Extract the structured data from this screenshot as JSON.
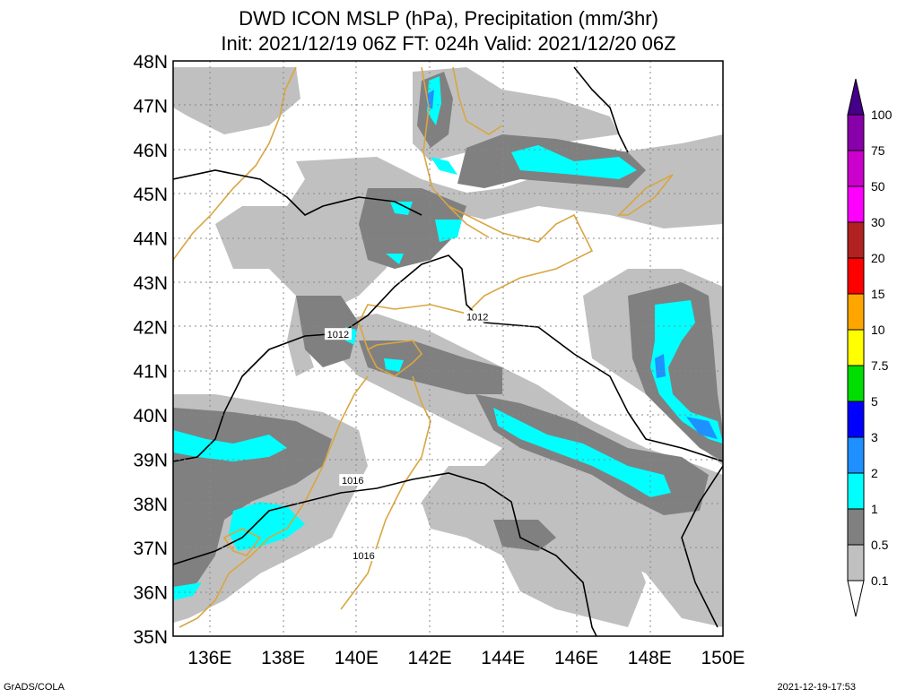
{
  "title_line1": "DWD ICON MSLP (hPa), Precipitation (mm/3hr)",
  "title_line2": "Init: 2021/12/19 06Z  FT: 024h  Valid: 2021/12/20 06Z",
  "footer_left": "GrADS/COLA",
  "footer_right": "2021-12-19-17:53",
  "chart_data": {
    "type": "map",
    "lon_range": [
      135,
      150
    ],
    "lat_range": [
      35,
      48
    ],
    "lon_ticks": [
      "136E",
      "138E",
      "140E",
      "142E",
      "144E",
      "146E",
      "148E",
      "150E"
    ],
    "lat_ticks": [
      "35N",
      "36N",
      "37N",
      "38N",
      "39N",
      "40N",
      "41N",
      "42N",
      "43N",
      "44N",
      "45N",
      "46N",
      "47N",
      "48N"
    ],
    "isobar_labels": [
      {
        "text": "1012",
        "lon": 139.5,
        "lat": 41.8
      },
      {
        "text": "1012",
        "lon": 143.3,
        "lat": 42.2
      },
      {
        "text": "1016",
        "lon": 139.9,
        "lat": 38.5
      },
      {
        "text": "1016",
        "lon": 140.2,
        "lat": 36.8
      }
    ],
    "colorbar": {
      "labels": [
        "0.1",
        "0.5",
        "1",
        "2",
        "3",
        "5",
        "7.5",
        "10",
        "15",
        "20",
        "30",
        "50",
        "75",
        "100"
      ],
      "colors": [
        "#ffffff",
        "#c0c0c0",
        "#808080",
        "#00ffff",
        "#1e90ff",
        "#0000ff",
        "#00dd00",
        "#ffff00",
        "#ffa500",
        "#ff0000",
        "#b22222",
        "#ff00ff",
        "#cc00cc",
        "#8800aa",
        "#440088"
      ]
    },
    "colors": {
      "coastline": "#d9a640",
      "isobar": "#000000",
      "grid": "#888888"
    }
  }
}
